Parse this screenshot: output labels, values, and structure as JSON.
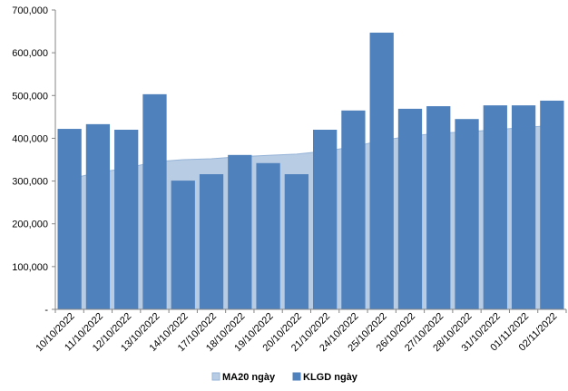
{
  "chart_data": {
    "type": "bar",
    "categories": [
      "10/10/2022",
      "11/10/2022",
      "12/10/2022",
      "13/10/2022",
      "14/10/2022",
      "17/10/2022",
      "18/10/2022",
      "19/10/2022",
      "20/10/2022",
      "21/10/2022",
      "24/10/2022",
      "25/10/2022",
      "26/10/2022",
      "27/10/2022",
      "28/10/2022",
      "31/10/2022",
      "01/11/2022",
      "02/11/2022"
    ],
    "series": [
      {
        "name": "MA20 ngày",
        "type": "area",
        "color": "#b8cce4",
        "values": [
          305000,
          320000,
          330000,
          345000,
          350000,
          352000,
          357000,
          360000,
          363000,
          370000,
          380000,
          395000,
          405000,
          412000,
          415000,
          420000,
          425000,
          430000
        ]
      },
      {
        "name": "KLGD ngày",
        "type": "bar",
        "color": "#4f81bd",
        "values": [
          422000,
          433000,
          420000,
          503000,
          301000,
          316000,
          361000,
          342000,
          316000,
          420000,
          465000,
          647000,
          469000,
          475000,
          445000,
          477000,
          477000,
          488000
        ]
      }
    ],
    "ylim": [
      0,
      700000
    ],
    "yticks": [
      {
        "value": 0,
        "label": "-"
      },
      {
        "value": 100000,
        "label": "100,000"
      },
      {
        "value": 200000,
        "label": "200,000"
      },
      {
        "value": 300000,
        "label": "300,000"
      },
      {
        "value": 400000,
        "label": "400,000"
      },
      {
        "value": 500000,
        "label": "500,000"
      },
      {
        "value": 600000,
        "label": "600,000"
      },
      {
        "value": 700000,
        "label": "700,000"
      }
    ],
    "legend": "bottom"
  }
}
